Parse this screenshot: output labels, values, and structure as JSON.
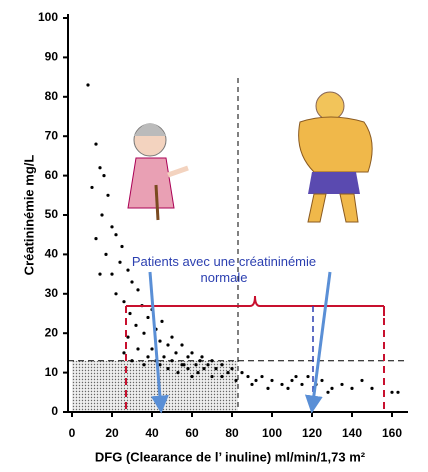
{
  "chart_data": {
    "type": "scatter",
    "xlabel": "DFG (Clearance de l’ inuline) ml/min/1,73 m²",
    "ylabel": "Créatininémie mg/L",
    "annotation": "Patients avec une créatininémie normale",
    "series": [
      {
        "color": "#000000",
        "x": [
          8,
          12,
          14,
          16,
          10,
          18,
          15,
          20,
          22,
          12,
          25,
          17,
          24,
          28,
          20,
          30,
          33,
          22,
          26,
          35,
          40,
          29,
          38,
          45,
          32,
          42,
          36,
          50,
          28,
          44,
          48,
          55,
          33,
          40,
          52,
          60,
          38,
          46,
          58,
          65,
          42,
          50,
          70,
          55,
          62,
          68,
          75,
          48,
          58,
          66,
          72,
          80,
          53,
          63,
          78,
          60,
          70,
          85,
          88,
          92,
          95,
          100,
          105,
          110,
          115,
          118,
          122,
          125,
          130,
          135,
          140,
          145,
          150,
          160,
          163,
          90,
          98,
          108,
          112,
          128,
          75,
          82,
          64,
          56,
          44,
          36,
          30,
          26,
          14
        ],
        "values": [
          83,
          68,
          62,
          60,
          57,
          55,
          50,
          47,
          45,
          44,
          42,
          40,
          38,
          36,
          35,
          33,
          31,
          30,
          28,
          27,
          26,
          25,
          24,
          23,
          22,
          21,
          20,
          19,
          19,
          18,
          17,
          17,
          16,
          16,
          15,
          15,
          14,
          14,
          14,
          14,
          13,
          13,
          13,
          12,
          12,
          12,
          12,
          11,
          11,
          11,
          11,
          11,
          10,
          10,
          10,
          9,
          9,
          10,
          9,
          8,
          9,
          8,
          7,
          8,
          7,
          9,
          7,
          8,
          6,
          7,
          6,
          8,
          6,
          5,
          5,
          7,
          6,
          6,
          9,
          5,
          9,
          8,
          13,
          12,
          12,
          12,
          13,
          15,
          35
        ]
      }
    ],
    "reference_lines": {
      "x": 83,
      "y": 13
    },
    "xlim": [
      -2,
      168
    ],
    "xticks": [
      0,
      20,
      40,
      60,
      80,
      100,
      120,
      140,
      160
    ],
    "ylim": [
      0,
      100
    ],
    "yticks": [
      0,
      10,
      20,
      30,
      40,
      50,
      60,
      70,
      80,
      90,
      100
    ]
  }
}
